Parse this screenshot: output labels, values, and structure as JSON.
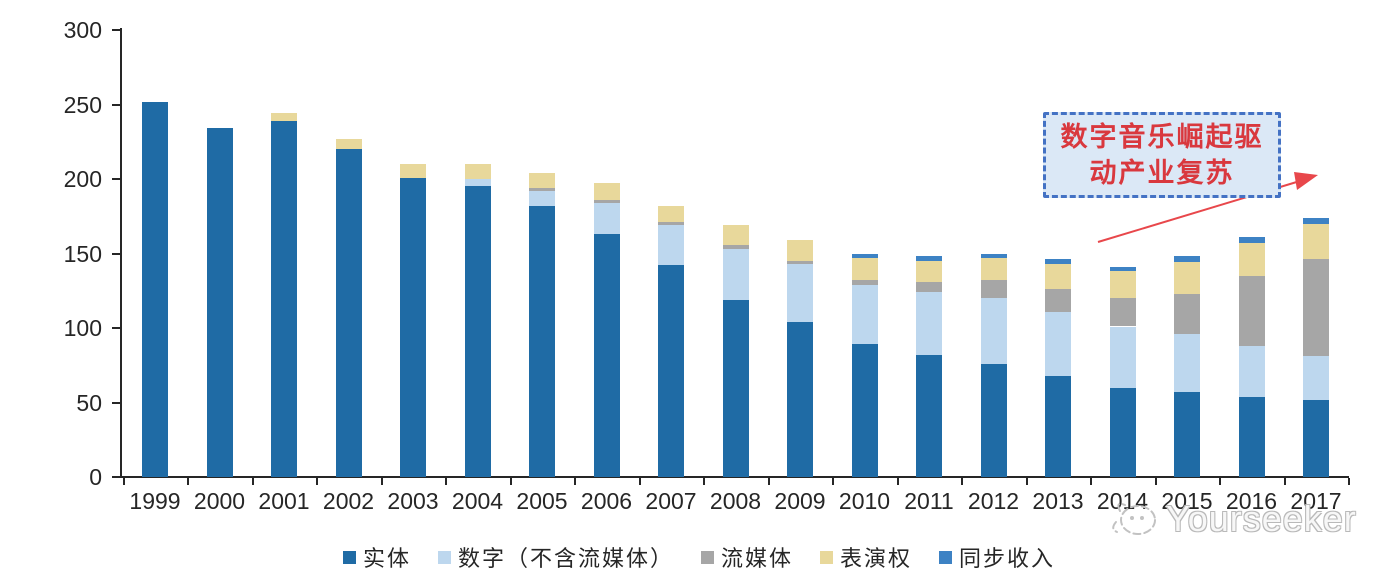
{
  "chart_data": {
    "type": "bar",
    "stacked": true,
    "title": "",
    "xlabel": "",
    "ylabel": "",
    "categories": [
      "1999",
      "2000",
      "2001",
      "2002",
      "2003",
      "2004",
      "2005",
      "2006",
      "2007",
      "2008",
      "2009",
      "2010",
      "2011",
      "2012",
      "2013",
      "2014",
      "2015",
      "2016",
      "2017"
    ],
    "series": [
      {
        "id": "physical",
        "name": "实体",
        "color": "#1F6BA5",
        "values": [
          252,
          234,
          239,
          220,
          201,
          195,
          182,
          163,
          142,
          119,
          104,
          89,
          82,
          76,
          68,
          60,
          57,
          54,
          52
        ]
      },
      {
        "id": "digital-ex-streaming",
        "name": "数字（不含流媒体）",
        "color": "#BDD7EE",
        "values": [
          0,
          0,
          0,
          0,
          0,
          5,
          10,
          21,
          27,
          34,
          39,
          40,
          42,
          44,
          43,
          41,
          39,
          34,
          29
        ]
      },
      {
        "id": "streaming",
        "name": "流媒体",
        "color": "#A6A6A6",
        "values": [
          0,
          0,
          0,
          0,
          0,
          0,
          2,
          2,
          2,
          3,
          2,
          3,
          7,
          12,
          15,
          19,
          27,
          47,
          65
        ]
      },
      {
        "id": "performance-rights",
        "name": "表演权",
        "color": "#E8D89B",
        "values": [
          0,
          0,
          5,
          7,
          9,
          10,
          10,
          11,
          11,
          13,
          14,
          15,
          14,
          15,
          17,
          18,
          21,
          22,
          24
        ]
      },
      {
        "id": "sync-revenue",
        "name": "同步收入",
        "color": "#3D82C4",
        "values": [
          0,
          0,
          0,
          0,
          0,
          0,
          0,
          0,
          0,
          0,
          0,
          3,
          3,
          3,
          3,
          3,
          4,
          4,
          4
        ]
      }
    ],
    "ylim": [
      0,
      300
    ],
    "yticks": [
      0,
      50,
      100,
      150,
      200,
      250,
      300
    ],
    "grid": false,
    "legend_position": "bottom"
  },
  "annotation": {
    "line1": "数字音乐崛起驱",
    "line2": "动产业复苏",
    "text_color": "#D9383E",
    "border_color": "#4472C4",
    "fill_color": "#DBE8F6",
    "arrow_color": "#E8474B"
  },
  "watermark": {
    "text": "Yourseeker",
    "logo": "cat-face-icon",
    "color": "#b9b9b9"
  }
}
